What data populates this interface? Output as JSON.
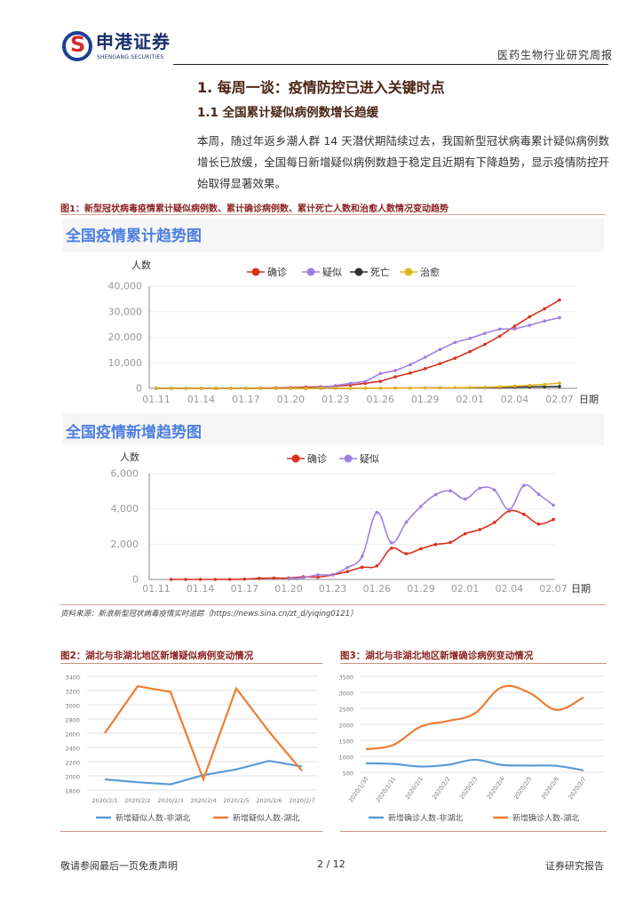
{
  "header": {
    "brand": "申港证券",
    "brand_en": "SHENGANG SECURITIES",
    "report_type": "医药生物行业研究周报"
  },
  "section": {
    "title": "1. 每周一谈：疫情防控已进入关键时点",
    "subtitle": "1.1 全国累计疑似病例数增长趋缓",
    "paragraph": "本周，随过年返乡潮人群 14 天潜伏期陆续过去，我国新型冠状病毒累计疑似病例数增长已放缓，全国每日新增疑似病例数趋于稳定且近期有下降趋势，显示疫情防控开始取得显著效果。"
  },
  "figure1": {
    "caption": "图1：新型冠状病毒疫情累计疑似病例数、累计确诊病例数、累计死亡人数和治愈人数情况变动趋势",
    "source": "资料来源：新浪新型冠状病毒疫情实时追踪（https://news.sina.cn/zt_d/yiqing0121）"
  },
  "chart_data": [
    {
      "type": "line",
      "title": "全国疫情累计趋势图",
      "ylabel": "人数",
      "xlabel": "日期",
      "ylim": [
        0,
        40000
      ],
      "yticks": [
        "0",
        "10,000",
        "20,000",
        "30,000",
        "40,000"
      ],
      "x": [
        "01.11",
        "01.12",
        "01.13",
        "01.14",
        "01.15",
        "01.16",
        "01.17",
        "01.18",
        "01.19",
        "01.20",
        "01.21",
        "01.22",
        "01.23",
        "01.24",
        "01.25",
        "01.26",
        "01.27",
        "01.28",
        "01.29",
        "01.30",
        "01.31",
        "02.01",
        "02.02",
        "02.03",
        "02.04",
        "02.05",
        "02.06",
        "02.07"
      ],
      "xticks": [
        "01.11",
        "01.14",
        "01.17",
        "01.20",
        "01.23",
        "01.26",
        "01.29",
        "02.01",
        "02.04",
        "02.07"
      ],
      "series": [
        {
          "name": "确诊",
          "color": "#d8321f",
          "values": [
            41,
            41,
            41,
            41,
            41,
            45,
            62,
            121,
            198,
            291,
            440,
            571,
            830,
            1287,
            1975,
            2744,
            4515,
            5974,
            7711,
            9692,
            11791,
            14380,
            17205,
            20438,
            24324,
            28018,
            31161,
            34546
          ]
        },
        {
          "name": "疑似",
          "color": "#a07fe0",
          "values": [
            0,
            0,
            0,
            0,
            0,
            0,
            0,
            0,
            0,
            54,
            37,
            393,
            1072,
            1965,
            2684,
            5794,
            6973,
            9239,
            12167,
            15238,
            17988,
            19544,
            21558,
            23214,
            23260,
            24702,
            26359,
            27657
          ]
        },
        {
          "name": "死亡",
          "color": "#333333",
          "values": [
            1,
            1,
            1,
            1,
            1,
            2,
            2,
            2,
            3,
            6,
            9,
            17,
            25,
            41,
            56,
            80,
            106,
            132,
            170,
            213,
            259,
            304,
            361,
            425,
            490,
            563,
            636,
            723
          ]
        },
        {
          "name": "治愈",
          "color": "#e6b422",
          "values": [
            0,
            0,
            0,
            0,
            0,
            0,
            0,
            0,
            0,
            0,
            25,
            28,
            34,
            38,
            49,
            51,
            60,
            103,
            124,
            171,
            243,
            328,
            475,
            632,
            892,
            1153,
            1540,
            2050
          ]
        }
      ]
    },
    {
      "type": "line",
      "title": "全国疫情新增趋势图",
      "ylabel": "人数",
      "xlabel": "日期",
      "ylim": [
        0,
        6000
      ],
      "yticks": [
        "0",
        "2,000",
        "4,000",
        "6,000"
      ],
      "x": [
        "01.11",
        "01.12",
        "01.13",
        "01.14",
        "01.15",
        "01.16",
        "01.17",
        "01.18",
        "01.19",
        "01.20",
        "01.21",
        "01.22",
        "01.23",
        "01.24",
        "01.25",
        "01.26",
        "01.27",
        "01.28",
        "01.29",
        "01.30",
        "01.31",
        "02.01",
        "02.02",
        "02.03",
        "02.04",
        "02.05",
        "02.06",
        "02.07"
      ],
      "xticks": [
        "01.11",
        "01.14",
        "01.17",
        "01.20",
        "01.23",
        "01.26",
        "01.29",
        "02.01",
        "02.04",
        "02.07"
      ],
      "series": [
        {
          "name": "确诊",
          "color": "#d8321f",
          "values": [
            null,
            0,
            0,
            0,
            0,
            4,
            17,
            59,
            77,
            77,
            149,
            131,
            259,
            444,
            688,
            769,
            1771,
            1459,
            1737,
            1982,
            2102,
            2590,
            2829,
            3235,
            3887,
            3694,
            3143,
            3399
          ]
        },
        {
          "name": "疑似",
          "color": "#a07fe0",
          "values": [
            null,
            null,
            null,
            null,
            null,
            null,
            null,
            null,
            null,
            27,
            100,
            257,
            280,
            680,
            1309,
            3806,
            2077,
            3248,
            4148,
            4812,
            5019,
            4562,
            5173,
            5072,
            3971,
            5328,
            4833,
            4214
          ]
        }
      ]
    },
    {
      "type": "line",
      "caption": "图2：湖北与非湖北地区新增疑似病例变动情况",
      "ylim": [
        1800,
        3400
      ],
      "yticks": [
        "1800",
        "2000",
        "2200",
        "2400",
        "2600",
        "2800",
        "3000",
        "3200",
        "3400"
      ],
      "x": [
        "2020/2/1",
        "2020/2/2",
        "2020/2/3",
        "2020/2/4",
        "2020/2/5",
        "2020/2/6",
        "2020/2/7"
      ],
      "series": [
        {
          "name": "新增疑似人数-非湖北",
          "color": "#5b9bd5",
          "values": [
            1950,
            1910,
            1880,
            2010,
            2090,
            2210,
            2130
          ]
        },
        {
          "name": "新增疑似人数-湖北",
          "color": "#ed7d31",
          "values": [
            2600,
            3260,
            3180,
            1950,
            3230,
            2620,
            2070
          ]
        }
      ]
    },
    {
      "type": "line",
      "caption": "图3：湖北与非湖北地区新增确诊病例变动情况",
      "ylim": [
        500,
        3500
      ],
      "yticks": [
        "500",
        "1000",
        "1500",
        "2000",
        "2500",
        "3000",
        "3500"
      ],
      "x": [
        "2020/1/30",
        "2020/1/31",
        "2020/2/1",
        "2020/2/2",
        "2020/2/3",
        "2020/2/4",
        "2020/2/5",
        "2020/2/6",
        "2020/2/7"
      ],
      "series": [
        {
          "name": "新增确诊人数-非湖北",
          "color": "#5b9bd5",
          "values": [
            780,
            760,
            680,
            730,
            890,
            730,
            710,
            700,
            560
          ]
        },
        {
          "name": "新增确诊人数-湖北",
          "color": "#ed7d31",
          "values": [
            1220,
            1350,
            1920,
            2100,
            2340,
            3160,
            2990,
            2450,
            2840
          ]
        }
      ]
    }
  ],
  "footer": {
    "disclaimer": "敬请参阅最后一页免责声明",
    "page": "2 / 12",
    "label": "证券研究报告"
  }
}
